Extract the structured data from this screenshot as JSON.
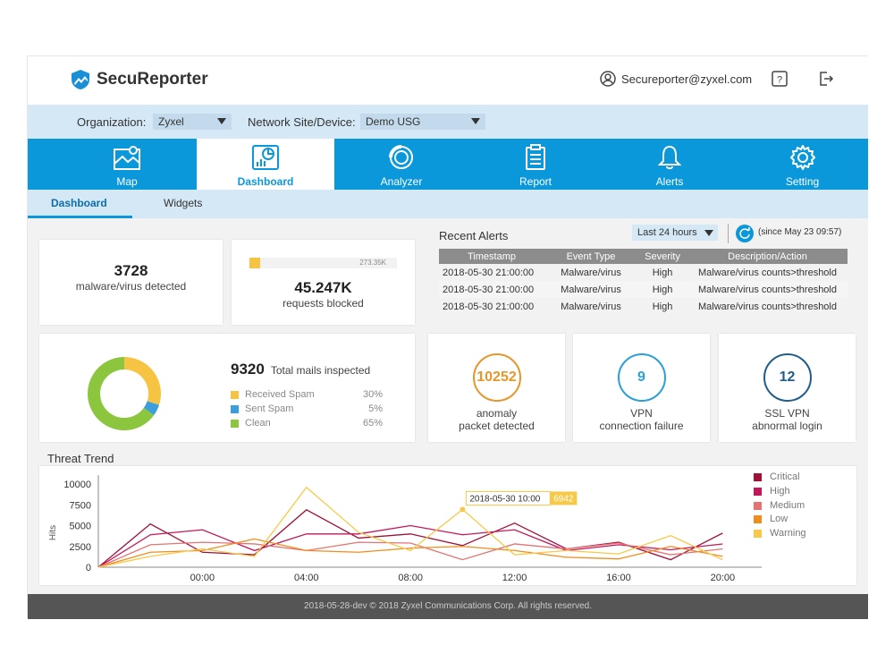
{
  "app": {
    "title": "SecuReporter"
  },
  "header": {
    "user": "Secureporter@zyxel.com"
  },
  "filters": {
    "org_label": "Organization:",
    "org_value": "Zyxel",
    "site_label": "Network Site/Device:",
    "site_value": "Demo USG"
  },
  "nav": [
    {
      "label": "Map",
      "icon": "map-icon"
    },
    {
      "label": "Dashboard",
      "icon": "dashboard-icon"
    },
    {
      "label": "Analyzer",
      "icon": "analyzer-icon"
    },
    {
      "label": "Report",
      "icon": "report-icon"
    },
    {
      "label": "Alerts",
      "icon": "bell-icon"
    },
    {
      "label": "Setting",
      "icon": "gear-icon"
    }
  ],
  "subtabs": {
    "dashboard": "Dashboard",
    "widgets": "Widgets"
  },
  "malware": {
    "count": "3728",
    "label": "malware/virus detected"
  },
  "requests": {
    "bar_max": "273.35K",
    "count": "45.247K",
    "label": "requests blocked",
    "bar_fraction": 0.07
  },
  "recent_alerts": {
    "title": "Recent Alerts",
    "range": "Last 24 hours",
    "since": "(since May 23 09:57)",
    "columns": [
      "Timestamp",
      "Event Type",
      "Severity",
      "Description/Action"
    ],
    "rows": [
      [
        "2018-05-30   21:00:00",
        "Malware/virus",
        "High",
        "Malware/virus counts>threshold"
      ],
      [
        "2018-05-30   21:00:00",
        "Malware/virus",
        "High",
        "Malware/virus counts>threshold"
      ],
      [
        "2018-05-30   21:00:00",
        "Malware/virus",
        "High",
        "Malware/virus counts>threshold"
      ]
    ]
  },
  "mails": {
    "total": "9320",
    "total_label": "Total mails inspected",
    "legend": [
      {
        "name": "Received Spam",
        "pct": "30%",
        "value": 30,
        "color": "#f6c342"
      },
      {
        "name": "Sent Spam",
        "pct": "5%",
        "value": 5,
        "color": "#3a9fdc"
      },
      {
        "name": "Clean",
        "pct": "65%",
        "value": 65,
        "color": "#8cc63f"
      }
    ]
  },
  "kpis": [
    {
      "value": "10252",
      "label1": "anomaly",
      "label2": "packet detected",
      "color": "#e8962a"
    },
    {
      "value": "9",
      "label1": "VPN",
      "label2": "connection failure",
      "color": "#2b9fd8"
    },
    {
      "value": "12",
      "label1": "SSL VPN",
      "label2": "abnormal login",
      "color": "#1e5d8c"
    }
  ],
  "chart_data": {
    "type": "line",
    "title": "Threat Trend",
    "ylabel": "Hits",
    "xlabel": "",
    "ylim": [
      0,
      10000
    ],
    "yticks": [
      "10000",
      "7500",
      "5000",
      "2500",
      "0"
    ],
    "ytick_values": [
      10000,
      7500,
      5000,
      2500,
      0
    ],
    "xticks": [
      "00:00",
      "04:00",
      "08:00",
      "12:00",
      "16:00",
      "20:00"
    ],
    "xtick_values": [
      0,
      4,
      8,
      12,
      16,
      20
    ],
    "xlim": [
      -4,
      21.5
    ],
    "x": [
      -4,
      -2,
      0,
      2,
      4,
      6,
      8,
      10,
      12,
      14,
      16,
      18,
      20
    ],
    "series": [
      {
        "name": "Critical",
        "color": "#a0113a",
        "values": [
          0,
          5200,
          1800,
          1500,
          6900,
          3500,
          4000,
          2600,
          5300,
          2200,
          3000,
          900,
          4100
        ]
      },
      {
        "name": "High",
        "color": "#c2185b",
        "values": [
          0,
          3900,
          4500,
          2000,
          4000,
          4000,
          5000,
          3900,
          4500,
          2000,
          2700,
          2100,
          2800
        ]
      },
      {
        "name": "Medium",
        "color": "#e57373",
        "values": [
          0,
          2700,
          3000,
          2800,
          2000,
          3000,
          2900,
          900,
          2800,
          2200,
          2900,
          1500,
          2200
        ]
      },
      {
        "name": "Low",
        "color": "#ef8c1e",
        "values": [
          0,
          1800,
          2000,
          3400,
          2000,
          1800,
          2300,
          2500,
          2000,
          1200,
          1000,
          2500,
          1300
        ]
      },
      {
        "name": "Warning",
        "color": "#f7c948",
        "values": [
          0,
          1300,
          2200,
          1300,
          9600,
          4200,
          2000,
          6942,
          1500,
          2000,
          1600,
          3800,
          900
        ]
      }
    ],
    "tooltip": {
      "x": "2018-05-30  10:00",
      "value": "6942",
      "series": "Warning",
      "at_x": 10
    },
    "legend_position": "right"
  },
  "footer": {
    "text": "2018-05-28-dev © 2018 Zyxel Communications Corp. All rights reserved."
  }
}
